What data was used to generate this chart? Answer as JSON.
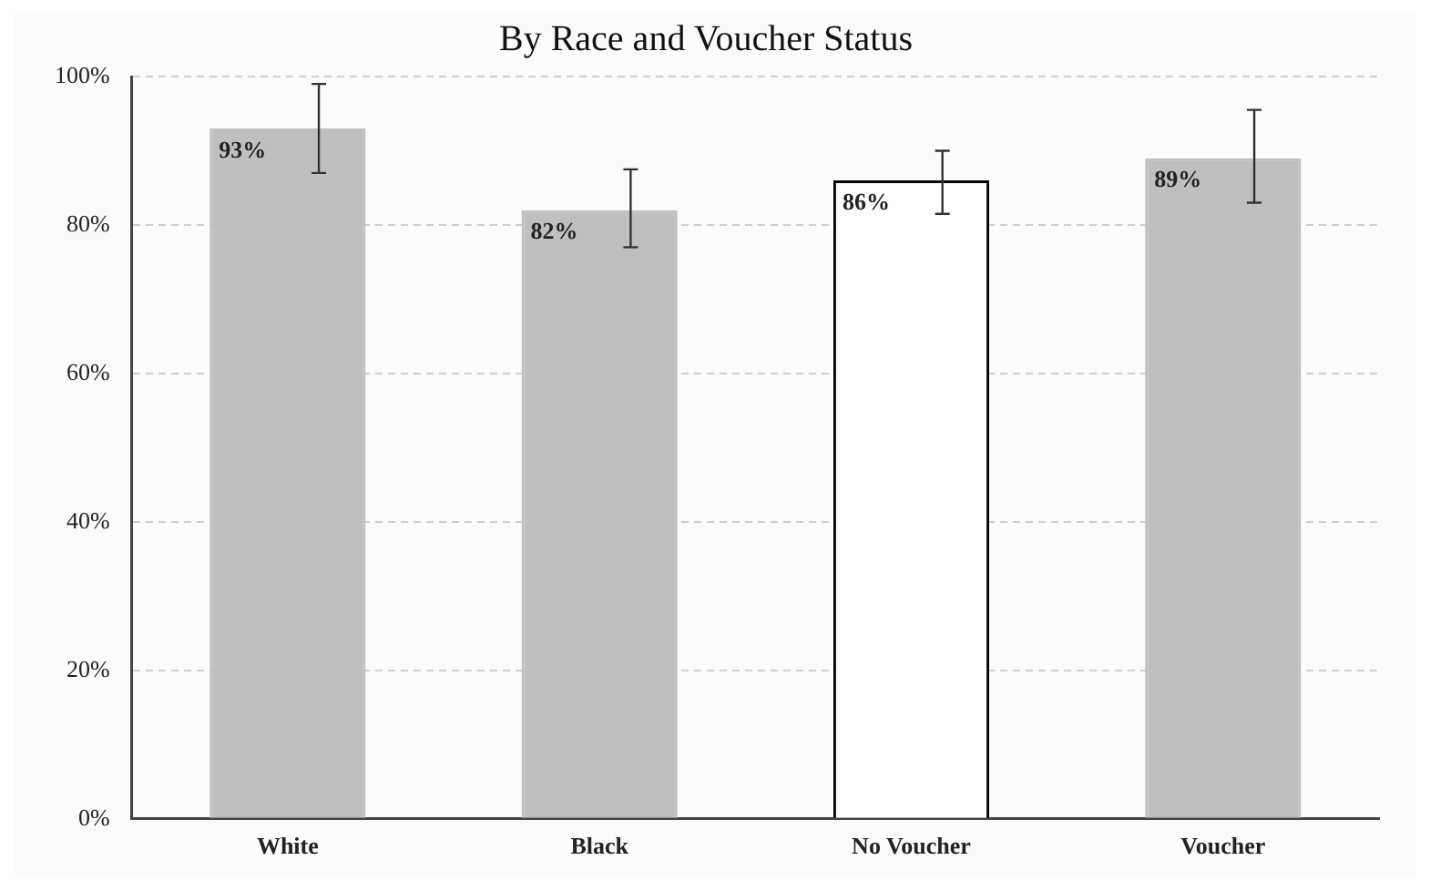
{
  "chart_data": {
    "type": "bar",
    "title": "By Race and Voucher Status",
    "categories": [
      "White",
      "Black",
      "No Voucher",
      "Voucher"
    ],
    "values": [
      93,
      82,
      86,
      89
    ],
    "colors": [
      "#bfbfbf",
      "#bfbfbf",
      "#ffffff",
      "#bfbfbf"
    ],
    "errors": [
      [
        87,
        99
      ],
      [
        77,
        87.5
      ],
      [
        81.5,
        90
      ],
      [
        83,
        95.5
      ]
    ],
    "value_labels": [
      "93%",
      "82%",
      "86%",
      "89%"
    ],
    "ylim": [
      0,
      100
    ],
    "yticks": [
      {
        "value": 0,
        "label": "0%"
      },
      {
        "value": 20,
        "label": "20%"
      },
      {
        "value": 40,
        "label": "40%"
      },
      {
        "value": 60,
        "label": "60%"
      },
      {
        "value": 80,
        "label": "80%"
      },
      {
        "value": 100,
        "label": "100%"
      }
    ],
    "grid": "y",
    "legend": false
  }
}
